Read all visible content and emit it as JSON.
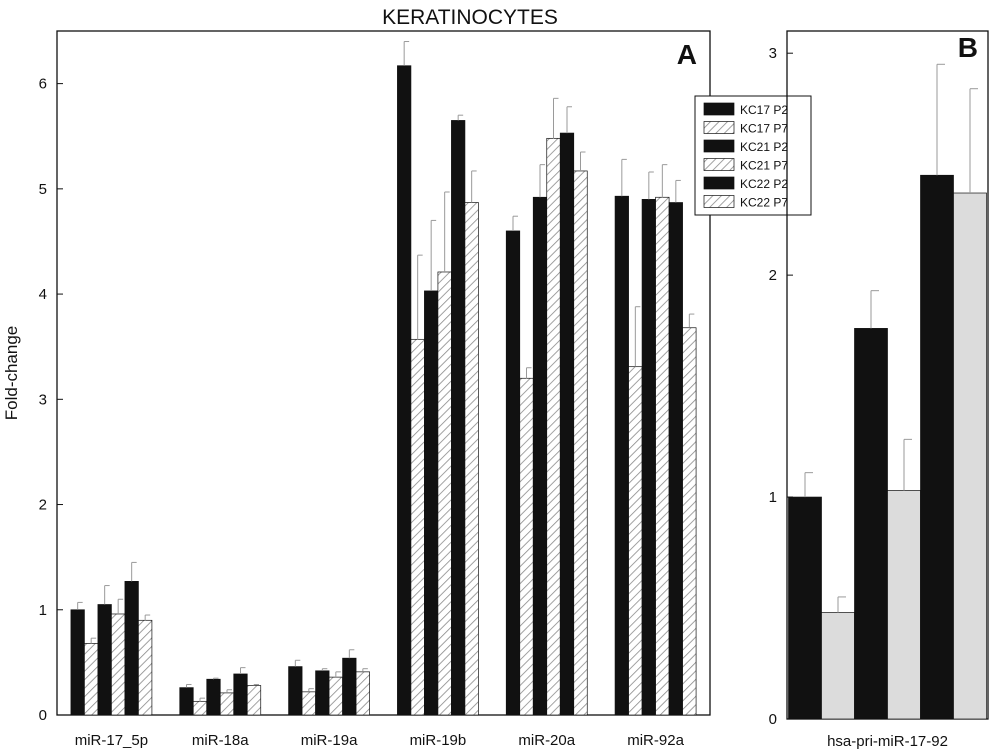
{
  "figure": {
    "title": "KERATINOCYTES"
  },
  "chart_data": [
    {
      "type": "bar",
      "panel_label": "A",
      "title": "KERATINOCYTES",
      "ylabel": "Fold-change",
      "xlabel": "",
      "ylim": [
        0,
        6.5
      ],
      "yticks": [
        0,
        1,
        2,
        3,
        4,
        5,
        6
      ],
      "grid": false,
      "legend_position": "top-right",
      "categories": [
        "miR-17_5p",
        "miR-18a",
        "miR-19a",
        "miR-19b",
        "miR-20a",
        "miR-92a"
      ],
      "series": [
        {
          "name": "KC17 P2",
          "fill": "solid",
          "values": [
            1.0,
            0.26,
            0.46,
            6.17,
            4.6,
            4.93
          ],
          "errors": [
            0.07,
            0.03,
            0.06,
            0.23,
            0.14,
            0.35
          ]
        },
        {
          "name": "KC17 P7",
          "fill": "hatched",
          "values": [
            0.68,
            0.13,
            0.22,
            3.57,
            3.2,
            3.31
          ],
          "errors": [
            0.05,
            0.03,
            0.03,
            0.8,
            0.1,
            0.57
          ]
        },
        {
          "name": "KC21 P2",
          "fill": "solid",
          "values": [
            1.05,
            0.34,
            0.42,
            4.03,
            4.92,
            4.9
          ],
          "errors": [
            0.18,
            0.01,
            0.02,
            0.67,
            0.31,
            0.26
          ]
        },
        {
          "name": "KC21 P7",
          "fill": "hatched",
          "values": [
            0.96,
            0.21,
            0.36,
            4.21,
            5.48,
            4.92
          ],
          "errors": [
            0.14,
            0.03,
            0.05,
            0.76,
            0.38,
            0.31
          ]
        },
        {
          "name": "KC22 P2",
          "fill": "solid",
          "values": [
            1.27,
            0.39,
            0.54,
            5.65,
            5.53,
            4.87
          ],
          "errors": [
            0.18,
            0.06,
            0.08,
            0.05,
            0.25,
            0.21
          ]
        },
        {
          "name": "KC22 P7",
          "fill": "hatched",
          "values": [
            0.9,
            0.28,
            0.41,
            4.87,
            5.17,
            3.68
          ],
          "errors": [
            0.05,
            0.01,
            0.03,
            0.3,
            0.18,
            0.13
          ]
        }
      ]
    },
    {
      "type": "bar",
      "panel_label": "B",
      "xlabel": "",
      "ylabel": "",
      "ylim": [
        0,
        3
      ],
      "yticks": [
        0,
        1,
        2,
        3
      ],
      "grid": false,
      "categories": [
        "hsa-pri-miR-17-92"
      ],
      "series": [
        {
          "fill": "black",
          "values": [
            1.0
          ],
          "errors": [
            0.11
          ]
        },
        {
          "fill": "lightgray",
          "values": [
            0.48
          ],
          "errors": [
            0.07
          ]
        },
        {
          "fill": "black",
          "values": [
            1.76
          ],
          "errors": [
            0.17
          ]
        },
        {
          "fill": "lightgray",
          "values": [
            1.03
          ],
          "errors": [
            0.23
          ]
        },
        {
          "fill": "black",
          "values": [
            2.45
          ],
          "errors": [
            0.5
          ]
        },
        {
          "fill": "lightgray",
          "values": [
            2.37
          ],
          "errors": [
            0.47
          ]
        }
      ]
    }
  ],
  "colors": {
    "solid_bar": "#111111",
    "hatch_line": "#8a8a8a",
    "hatch_bg": "#ffffff",
    "light_bar": "#dcdcdc",
    "error_bar": "#9a9a9a",
    "axis": "#111111"
  }
}
